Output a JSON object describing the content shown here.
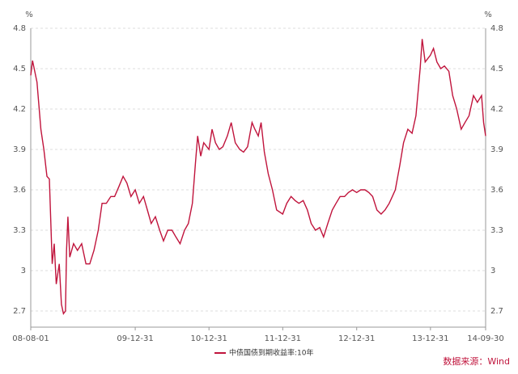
{
  "chart_data": {
    "type": "line",
    "y_unit": "%",
    "source": "数据来源：Wind",
    "x": [
      "08-08-01",
      "08-08-10",
      "08-09-01",
      "08-09-20",
      "08-10-05",
      "08-10-20",
      "08-11-01",
      "08-11-15",
      "08-11-25",
      "08-12-05",
      "08-12-20",
      "08-12-31",
      "09-01-10",
      "09-01-20",
      "09-01-25",
      "09-02-01",
      "09-02-10",
      "09-03-01",
      "09-03-20",
      "09-04-10",
      "09-05-01",
      "09-05-20",
      "09-06-10",
      "09-07-01",
      "09-07-20",
      "09-08-10",
      "09-09-01",
      "09-09-20",
      "09-10-10",
      "09-11-01",
      "09-11-20",
      "09-12-10",
      "09-12-31",
      "10-01-20",
      "10-02-10",
      "10-03-01",
      "10-03-20",
      "10-04-10",
      "10-05-01",
      "10-05-20",
      "10-06-10",
      "10-07-01",
      "10-07-20",
      "10-08-10",
      "10-09-01",
      "10-09-20",
      "10-10-10",
      "10-10-25",
      "10-11-05",
      "10-11-20",
      "10-12-05",
      "10-12-31",
      "11-01-15",
      "11-02-01",
      "11-02-20",
      "11-03-10",
      "11-04-01",
      "11-04-20",
      "11-05-10",
      "11-06-01",
      "11-06-20",
      "11-07-10",
      "11-08-01",
      "11-08-15",
      "11-09-01",
      "11-09-15",
      "11-10-01",
      "11-10-20",
      "11-11-10",
      "11-12-01",
      "11-12-31",
      "12-01-20",
      "12-02-10",
      "12-03-01",
      "12-03-20",
      "12-04-10",
      "12-05-01",
      "12-05-20",
      "12-06-10",
      "12-07-01",
      "12-07-20",
      "12-08-10",
      "12-09-01",
      "12-09-20",
      "12-10-10",
      "12-11-01",
      "12-11-20",
      "12-12-10",
      "12-12-31",
      "13-01-20",
      "13-02-10",
      "13-03-01",
      "13-03-20",
      "13-04-10",
      "13-05-01",
      "13-05-20",
      "13-06-10",
      "13-06-25",
      "13-07-10",
      "13-08-01",
      "13-08-20",
      "13-09-10",
      "13-10-01",
      "13-10-20",
      "13-11-10",
      "13-11-20",
      "13-12-05",
      "13-12-31",
      "14-01-15",
      "14-02-01",
      "14-02-20",
      "14-03-10",
      "14-04-01",
      "14-04-20",
      "14-05-10",
      "14-06-01",
      "14-06-20",
      "14-07-10",
      "14-08-01",
      "14-08-20",
      "14-09-10",
      "14-09-20",
      "14-09-30"
    ],
    "series": [
      {
        "name": "中债国债到期收益率:10年",
        "color": "#c0143c",
        "values": [
          4.45,
          4.56,
          4.4,
          4.05,
          3.9,
          3.7,
          3.68,
          3.05,
          3.2,
          2.9,
          3.05,
          2.75,
          2.68,
          2.7,
          3.15,
          3.4,
          3.1,
          3.2,
          3.15,
          3.2,
          3.05,
          3.05,
          3.15,
          3.3,
          3.5,
          3.5,
          3.55,
          3.55,
          3.62,
          3.7,
          3.65,
          3.55,
          3.6,
          3.5,
          3.55,
          3.45,
          3.35,
          3.4,
          3.3,
          3.22,
          3.3,
          3.3,
          3.25,
          3.2,
          3.3,
          3.35,
          3.5,
          3.8,
          4.0,
          3.85,
          3.95,
          3.9,
          4.05,
          3.95,
          3.9,
          3.92,
          4.0,
          4.1,
          3.95,
          3.9,
          3.88,
          3.92,
          4.1,
          4.05,
          4.0,
          4.1,
          3.88,
          3.72,
          3.6,
          3.45,
          3.42,
          3.5,
          3.55,
          3.52,
          3.5,
          3.52,
          3.45,
          3.35,
          3.3,
          3.32,
          3.25,
          3.35,
          3.45,
          3.5,
          3.55,
          3.55,
          3.58,
          3.6,
          3.58,
          3.6,
          3.6,
          3.58,
          3.55,
          3.45,
          3.42,
          3.45,
          3.5,
          3.55,
          3.6,
          3.78,
          3.95,
          4.05,
          4.02,
          4.15,
          4.5,
          4.72,
          4.55,
          4.6,
          4.65,
          4.55,
          4.5,
          4.52,
          4.48,
          4.3,
          4.2,
          4.05,
          4.1,
          4.15,
          4.3,
          4.25,
          4.3,
          4.1,
          4.0
        ]
      }
    ],
    "xlim": [
      "08-08-01",
      "14-09-30"
    ],
    "xticks": [
      "08-08-01",
      "09-12-31",
      "10-12-31",
      "11-12-31",
      "12-12-31",
      "13-12-31",
      "14-09-30"
    ],
    "ylim": [
      2.58,
      4.8
    ],
    "yticks": [
      2.7,
      3,
      3.3,
      3.6,
      3.9,
      4.2,
      4.5,
      4.8
    ],
    "grid": true
  }
}
